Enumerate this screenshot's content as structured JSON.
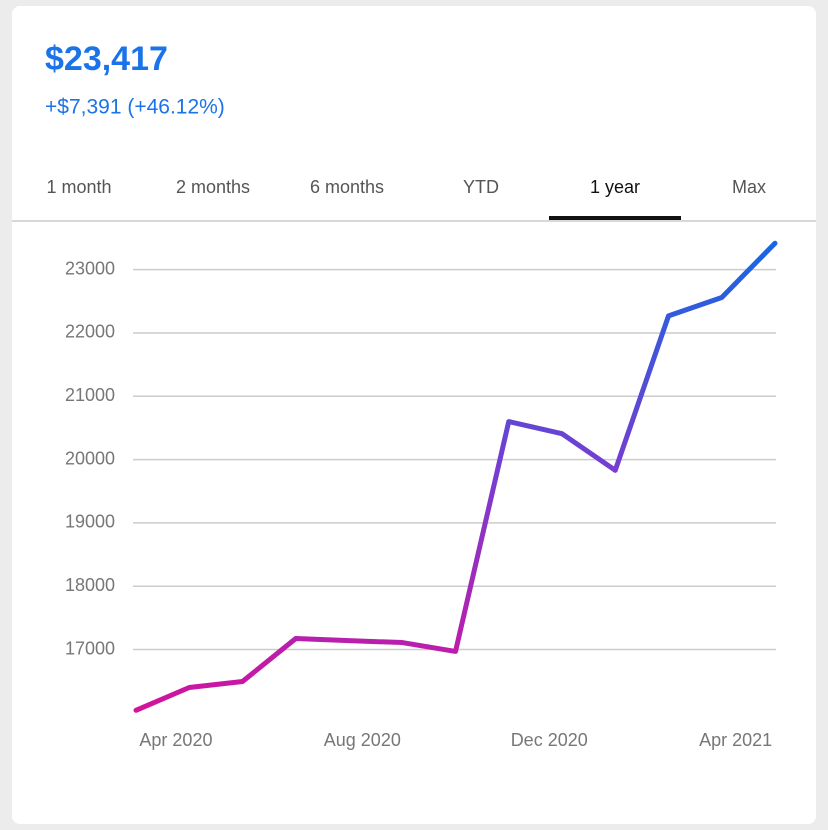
{
  "header": {
    "value": "$23,417",
    "change": "+$7,391 (+46.12%)"
  },
  "tabs": [
    "1 month",
    "2 months",
    "6 months",
    "YTD",
    "1 year",
    "Max"
  ],
  "selected_tab": 4,
  "chart_data": {
    "type": "line",
    "x": [
      0,
      1,
      2,
      3,
      4,
      5,
      6,
      7,
      8,
      9,
      10,
      11,
      12
    ],
    "xlim": [
      0,
      12
    ],
    "xticks": [
      {
        "value": 0.75,
        "label": "Apr 2020"
      },
      {
        "value": 4.25,
        "label": "Aug 2020"
      },
      {
        "value": 7.76,
        "label": "Dec 2020"
      },
      {
        "value": 11.26,
        "label": "Apr 2021"
      }
    ],
    "series": [
      {
        "values": [
          16040,
          16400,
          16495,
          17174,
          17140,
          17110,
          16970,
          20600,
          20410,
          19830,
          22270,
          22560,
          23417
        ],
        "gradient": [
          "#d4129c",
          "#7a3cd0",
          "#1468e2"
        ]
      }
    ],
    "ylim": [
      15950,
      23500
    ],
    "yticks": [
      17000,
      18000,
      19000,
      20000,
      21000,
      22000,
      23000
    ],
    "grid": true
  }
}
